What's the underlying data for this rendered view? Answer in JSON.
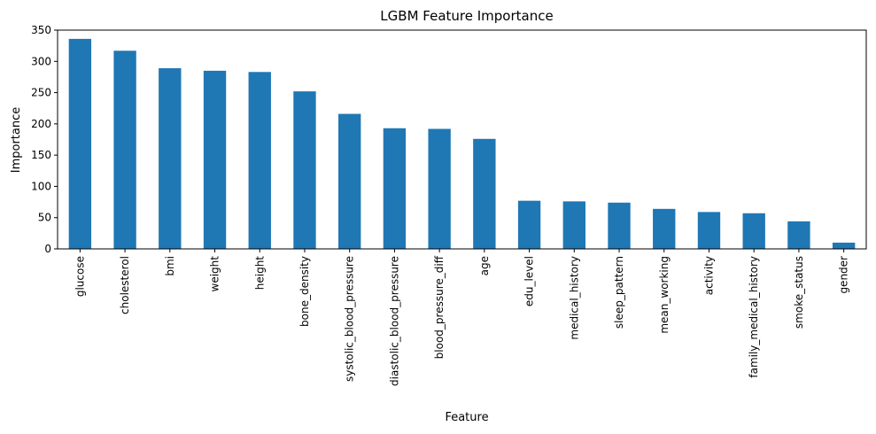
{
  "chart_data": {
    "type": "bar",
    "title": "LGBM Feature Importance",
    "xlabel": "Feature",
    "ylabel": "Importance",
    "ylim": [
      0,
      350
    ],
    "yticks": [
      0,
      50,
      100,
      150,
      200,
      250,
      300,
      350
    ],
    "grid": false,
    "bar_color": "#1f77b4",
    "categories": [
      "glucose",
      "cholesterol",
      "bmi",
      "weight",
      "height",
      "bone_density",
      "systolic_blood_pressure",
      "diastolic_blood_pressure",
      "blood_pressure_diff",
      "age",
      "edu_level",
      "medical_history",
      "sleep_pattern",
      "mean_working",
      "activity",
      "family_medical_history",
      "smoke_status",
      "gender"
    ],
    "values": [
      336,
      317,
      289,
      285,
      283,
      252,
      216,
      193,
      192,
      176,
      77,
      76,
      74,
      64,
      59,
      57,
      44,
      10
    ]
  }
}
